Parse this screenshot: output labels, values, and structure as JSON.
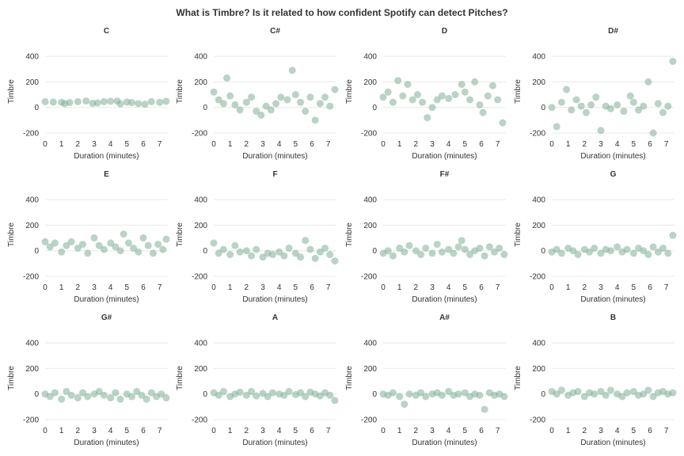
{
  "title": "What is Timbre? Is it related to how confident Spotify can detect Pitches?",
  "colors": {
    "point": "#7fae96",
    "grid": "#e8e8e8",
    "text": "#333333"
  },
  "chart_data": [
    {
      "type": "scatter",
      "title": "C",
      "xlabel": "Duration (minutes)",
      "ylabel": "Timbre",
      "xlim": [
        0,
        7.5
      ],
      "ylim": [
        -200,
        450
      ],
      "xticks": [
        "0",
        "1",
        "2",
        "3",
        "4",
        "5",
        "6",
        "7"
      ],
      "yticks": [
        "-200",
        "0",
        "200",
        "400"
      ],
      "x": [
        0,
        0.5,
        1,
        1.2,
        1.5,
        2,
        2.5,
        2.9,
        3.2,
        3.6,
        4,
        4.4,
        4.6,
        5,
        5.3,
        5.7,
        6.1,
        6.5,
        7,
        7.4
      ],
      "y": [
        45,
        42,
        40,
        30,
        38,
        45,
        50,
        32,
        35,
        45,
        48,
        50,
        28,
        42,
        38,
        30,
        25,
        45,
        40,
        48
      ]
    },
    {
      "type": "scatter",
      "title": "C#",
      "xlabel": "Duration (minutes)",
      "ylabel": "Timbre",
      "xlim": [
        0,
        7.5
      ],
      "ylim": [
        -200,
        450
      ],
      "xticks": [
        "0",
        "1",
        "2",
        "3",
        "4",
        "5",
        "6",
        "7"
      ],
      "yticks": [
        "-200",
        "0",
        "200",
        "400"
      ],
      "x": [
        0,
        0.3,
        0.6,
        0.8,
        1,
        1.3,
        1.6,
        2,
        2.3,
        2.6,
        2.9,
        3.2,
        3.5,
        3.8,
        4.1,
        4.5,
        4.8,
        5,
        5.3,
        5.6,
        5.9,
        6.2,
        6.5,
        6.8,
        7.1,
        7.4
      ],
      "y": [
        120,
        60,
        30,
        230,
        90,
        20,
        -20,
        40,
        80,
        -30,
        -60,
        10,
        -20,
        30,
        80,
        60,
        290,
        100,
        40,
        -30,
        80,
        -100,
        30,
        80,
        10,
        140
      ]
    },
    {
      "type": "scatter",
      "title": "D",
      "xlabel": "Duration (minutes)",
      "ylabel": "Timbre",
      "xlim": [
        0,
        7.5
      ],
      "ylim": [
        -200,
        450
      ],
      "xticks": [
        "0",
        "1",
        "2",
        "3",
        "4",
        "5",
        "6",
        "7"
      ],
      "yticks": [
        "-200",
        "0",
        "200",
        "400"
      ],
      "x": [
        0,
        0.3,
        0.6,
        0.9,
        1.2,
        1.5,
        1.8,
        2.1,
        2.4,
        2.7,
        3,
        3.3,
        3.6,
        4,
        4.4,
        4.8,
        5,
        5.3,
        5.6,
        5.9,
        6.1,
        6.4,
        6.7,
        7,
        7.3
      ],
      "y": [
        80,
        120,
        40,
        210,
        90,
        180,
        60,
        100,
        40,
        -80,
        0,
        60,
        90,
        70,
        100,
        180,
        120,
        60,
        200,
        20,
        -40,
        90,
        170,
        60,
        -120
      ]
    },
    {
      "type": "scatter",
      "title": "D#",
      "xlabel": "Duration (minutes)",
      "ylabel": "Timbre",
      "xlim": [
        0,
        7.5
      ],
      "ylim": [
        -200,
        450
      ],
      "xticks": [
        "0",
        "1",
        "2",
        "3",
        "4",
        "5",
        "6",
        "7"
      ],
      "yticks": [
        "-200",
        "0",
        "200",
        "400"
      ],
      "x": [
        0,
        0.3,
        0.6,
        0.9,
        1.2,
        1.5,
        1.8,
        2.1,
        2.4,
        2.7,
        3,
        3.3,
        3.6,
        4,
        4.4,
        4.8,
        5,
        5.3,
        5.6,
        5.9,
        6.2,
        6.5,
        6.8,
        7.1,
        7.4
      ],
      "y": [
        0,
        -150,
        40,
        140,
        -20,
        60,
        10,
        -40,
        20,
        80,
        -180,
        10,
        -10,
        20,
        -30,
        90,
        40,
        -20,
        10,
        200,
        -200,
        30,
        -40,
        10,
        360
      ]
    },
    {
      "type": "scatter",
      "title": "E",
      "xlabel": "Duration (minutes)",
      "ylabel": "Timbre",
      "xlim": [
        0,
        7.5
      ],
      "ylim": [
        -200,
        450
      ],
      "xticks": [
        "0",
        "1",
        "2",
        "3",
        "4",
        "5",
        "6",
        "7"
      ],
      "yticks": [
        "-200",
        "0",
        "200",
        "400"
      ],
      "x": [
        0,
        0.3,
        0.6,
        1,
        1.3,
        1.6,
        2,
        2.3,
        2.6,
        3,
        3.3,
        3.6,
        4,
        4.3,
        4.6,
        4.8,
        5.1,
        5.4,
        5.7,
        6,
        6.3,
        6.6,
        6.9,
        7.2,
        7.4
      ],
      "y": [
        70,
        30,
        60,
        -10,
        40,
        70,
        20,
        50,
        -20,
        100,
        40,
        10,
        60,
        30,
        0,
        130,
        60,
        20,
        -10,
        100,
        40,
        -20,
        50,
        10,
        90
      ]
    },
    {
      "type": "scatter",
      "title": "F",
      "xlabel": "Duration (minutes)",
      "ylabel": "Timbre",
      "xlim": [
        0,
        7.5
      ],
      "ylim": [
        -200,
        450
      ],
      "xticks": [
        "0",
        "1",
        "2",
        "3",
        "4",
        "5",
        "6",
        "7"
      ],
      "yticks": [
        "-200",
        "0",
        "200",
        "400"
      ],
      "x": [
        0,
        0.3,
        0.6,
        1,
        1.3,
        1.6,
        2,
        2.3,
        2.6,
        3,
        3.3,
        3.6,
        4,
        4.3,
        4.6,
        5,
        5.3,
        5.6,
        5.9,
        6.2,
        6.5,
        6.8,
        7.1,
        7.4
      ],
      "y": [
        60,
        -20,
        10,
        -30,
        40,
        -10,
        0,
        -40,
        10,
        -50,
        -20,
        -30,
        -10,
        -40,
        20,
        -20,
        -50,
        80,
        10,
        -60,
        -10,
        20,
        -30,
        -80
      ]
    },
    {
      "type": "scatter",
      "title": "F#",
      "xlabel": "Duration (minutes)",
      "ylabel": "Timbre",
      "xlim": [
        0,
        7.5
      ],
      "ylim": [
        -200,
        450
      ],
      "xticks": [
        "0",
        "1",
        "2",
        "3",
        "4",
        "5",
        "6",
        "7"
      ],
      "yticks": [
        "-200",
        "0",
        "200",
        "400"
      ],
      "x": [
        0,
        0.3,
        0.6,
        1,
        1.3,
        1.6,
        2,
        2.3,
        2.6,
        3,
        3.3,
        3.6,
        4,
        4.3,
        4.6,
        4.8,
        5,
        5.3,
        5.6,
        5.9,
        6.2,
        6.5,
        6.8,
        7.1,
        7.4
      ],
      "y": [
        -20,
        0,
        -40,
        20,
        -10,
        40,
        0,
        -30,
        20,
        -20,
        50,
        -10,
        10,
        -20,
        30,
        80,
        10,
        -30,
        0,
        20,
        -40,
        30,
        -10,
        20,
        -30
      ]
    },
    {
      "type": "scatter",
      "title": "G",
      "xlabel": "Duration (minutes)",
      "ylabel": "Timbre",
      "xlim": [
        0,
        7.5
      ],
      "ylim": [
        -200,
        450
      ],
      "xticks": [
        "0",
        "1",
        "2",
        "3",
        "4",
        "5",
        "6",
        "7"
      ],
      "yticks": [
        "-200",
        "0",
        "200",
        "400"
      ],
      "x": [
        0,
        0.3,
        0.6,
        1,
        1.3,
        1.6,
        2,
        2.3,
        2.6,
        3,
        3.3,
        3.6,
        4,
        4.3,
        4.6,
        5,
        5.3,
        5.6,
        5.9,
        6.2,
        6.5,
        6.8,
        7.1,
        7.4
      ],
      "y": [
        -10,
        10,
        -20,
        20,
        0,
        -30,
        10,
        -10,
        20,
        -20,
        10,
        0,
        30,
        -10,
        10,
        -20,
        20,
        0,
        -30,
        30,
        -10,
        20,
        -20,
        120
      ]
    },
    {
      "type": "scatter",
      "title": "G#",
      "xlabel": "Duration (minutes)",
      "ylabel": "Timbre",
      "xlim": [
        0,
        7.5
      ],
      "ylim": [
        -200,
        450
      ],
      "xticks": [
        "0",
        "1",
        "2",
        "3",
        "4",
        "5",
        "6",
        "7"
      ],
      "yticks": [
        "-200",
        "0",
        "200",
        "400"
      ],
      "x": [
        0,
        0.3,
        0.6,
        1,
        1.3,
        1.6,
        2,
        2.3,
        2.6,
        3,
        3.3,
        3.6,
        4,
        4.3,
        4.6,
        5,
        5.3,
        5.6,
        5.9,
        6.2,
        6.5,
        6.8,
        7.1,
        7.4
      ],
      "y": [
        0,
        -20,
        10,
        -40,
        20,
        -10,
        -30,
        10,
        -20,
        0,
        20,
        -10,
        -30,
        10,
        -40,
        0,
        -20,
        20,
        -10,
        -40,
        10,
        -20,
        0,
        -30
      ]
    },
    {
      "type": "scatter",
      "title": "A",
      "xlabel": "Duration (minutes)",
      "ylabel": "Timbre",
      "xlim": [
        0,
        7.5
      ],
      "ylim": [
        -200,
        450
      ],
      "xticks": [
        "0",
        "1",
        "2",
        "3",
        "4",
        "5",
        "6",
        "7"
      ],
      "yticks": [
        "-200",
        "0",
        "200",
        "400"
      ],
      "x": [
        0,
        0.3,
        0.6,
        1,
        1.3,
        1.6,
        2,
        2.3,
        2.6,
        3,
        3.3,
        3.6,
        4,
        4.3,
        4.6,
        5,
        5.3,
        5.6,
        5.9,
        6.2,
        6.5,
        6.8,
        7.1,
        7.4
      ],
      "y": [
        10,
        -10,
        20,
        -20,
        0,
        15,
        -10,
        20,
        -15,
        5,
        -20,
        10,
        0,
        -10,
        20,
        -5,
        10,
        -20,
        15,
        0,
        -15,
        10,
        -10,
        -50
      ]
    },
    {
      "type": "scatter",
      "title": "A#",
      "xlabel": "Duration (minutes)",
      "ylabel": "Timbre",
      "xlim": [
        0,
        7.5
      ],
      "ylim": [
        -200,
        450
      ],
      "xticks": [
        "0",
        "1",
        "2",
        "3",
        "4",
        "5",
        "6",
        "7"
      ],
      "yticks": [
        "-200",
        "0",
        "200",
        "400"
      ],
      "x": [
        0,
        0.3,
        0.6,
        1,
        1.3,
        1.6,
        2,
        2.3,
        2.6,
        3,
        3.3,
        3.6,
        4,
        4.3,
        4.6,
        5,
        5.3,
        5.6,
        5.9,
        6.2,
        6.5,
        6.8,
        7.1,
        7.4
      ],
      "y": [
        0,
        -10,
        10,
        -20,
        -80,
        0,
        -10,
        10,
        -20,
        0,
        10,
        -10,
        20,
        -10,
        0,
        10,
        -20,
        0,
        -10,
        -120,
        10,
        -10,
        0,
        -20
      ]
    },
    {
      "type": "scatter",
      "title": "B",
      "xlabel": "Duration (minutes)",
      "ylabel": "Timbre",
      "xlim": [
        0,
        7.5
      ],
      "ylim": [
        -200,
        450
      ],
      "xticks": [
        "0",
        "1",
        "2",
        "3",
        "4",
        "5",
        "6",
        "7"
      ],
      "yticks": [
        "-200",
        "0",
        "200",
        "400"
      ],
      "x": [
        0,
        0.3,
        0.6,
        1,
        1.3,
        1.6,
        2,
        2.3,
        2.6,
        3,
        3.3,
        3.6,
        4,
        4.3,
        4.6,
        5,
        5.3,
        5.6,
        5.9,
        6.2,
        6.5,
        6.8,
        7.1,
        7.4
      ],
      "y": [
        20,
        0,
        30,
        -10,
        10,
        20,
        -20,
        10,
        0,
        20,
        -10,
        30,
        0,
        -20,
        10,
        20,
        -10,
        0,
        30,
        -20,
        10,
        20,
        0,
        10
      ]
    }
  ]
}
